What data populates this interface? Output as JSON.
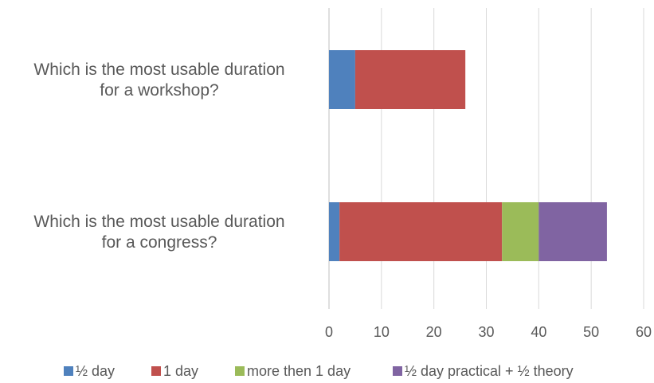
{
  "chart_data": {
    "type": "bar",
    "orientation": "horizontal",
    "stacked": true,
    "categories": [
      [
        "Which is the most usable duration",
        "for a workshop?"
      ],
      [
        "Which is the most usable duration",
        "for a congress?"
      ]
    ],
    "series": [
      {
        "name": "½ day",
        "color": "#4F81BD",
        "values": [
          5,
          2
        ]
      },
      {
        "name": "1 day",
        "color": "#C0504D",
        "values": [
          21,
          31
        ]
      },
      {
        "name": "more then 1 day",
        "color": "#9BBB59",
        "values": [
          0,
          7
        ]
      },
      {
        "name": "½ day practical + ½ theory",
        "color": "#8064A2",
        "values": [
          0,
          13
        ]
      }
    ],
    "xlim": [
      0,
      60
    ],
    "xticks": [
      "0",
      "10",
      "20",
      "30",
      "40",
      "50",
      "60"
    ],
    "grid": true,
    "legend": "bottom",
    "title": "",
    "xlabel": "",
    "ylabel": ""
  }
}
